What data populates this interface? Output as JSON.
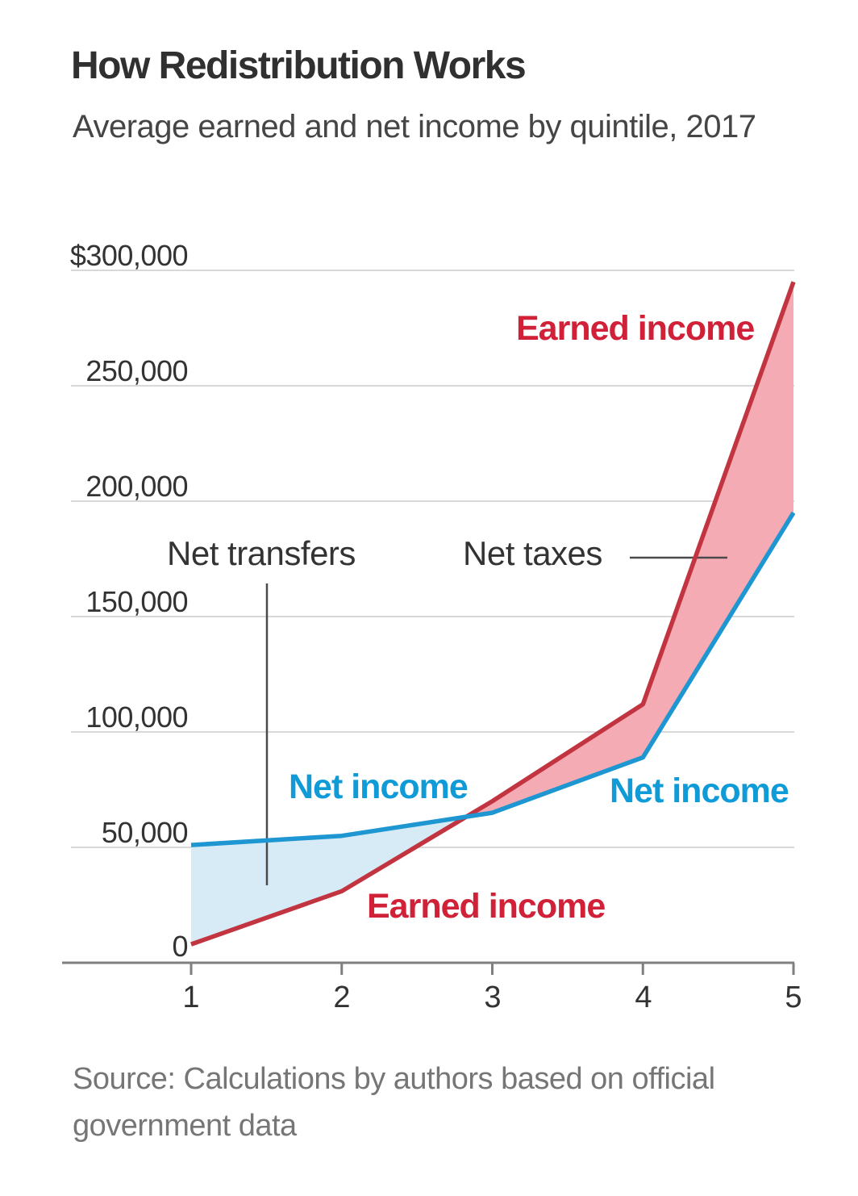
{
  "header": {
    "title": "How Redistribution Works",
    "subtitle": "Average earned and net income by quintile, 2017"
  },
  "source": "Source: Calculations by authors based on official government data",
  "colors": {
    "earned_line": "#c23440",
    "earned_label": "#d02139",
    "net_line": "#1e96d2",
    "net_label": "#0f9ad8",
    "net_taxes_fill": "#f4abb4",
    "net_transfers_fill": "#d7ebf6",
    "gridline": "#d8d8d8",
    "axis": "#7f7f7f",
    "callout_line": "#4a4a4a"
  },
  "chart_data": {
    "type": "area",
    "title": "How Redistribution Works",
    "subtitle": "Average earned and net income by quintile, 2017",
    "xlabel": "",
    "ylabel": "",
    "x": [
      1,
      2,
      3,
      4,
      5
    ],
    "x_tick_labels": [
      "1",
      "2",
      "3",
      "4",
      "5"
    ],
    "ylim": [
      0,
      300000
    ],
    "grid": "horizontal",
    "y_ticks": [
      {
        "label": "$300,000",
        "value": 300000
      },
      {
        "label": "250,000",
        "value": 250000
      },
      {
        "label": "200,000",
        "value": 200000
      },
      {
        "label": "150,000",
        "value": 150000
      },
      {
        "label": "100,000",
        "value": 100000
      },
      {
        "label": "50,000",
        "value": 50000
      },
      {
        "label": "0",
        "value": 0
      }
    ],
    "series": [
      {
        "name": "Earned income",
        "color": "#c23440",
        "values": [
          8000,
          31000,
          70000,
          112000,
          295000
        ]
      },
      {
        "name": "Net income",
        "color": "#1e96d2",
        "values": [
          51000,
          55000,
          65000,
          89000,
          195000
        ]
      }
    ],
    "shaded_regions": [
      {
        "name": "Net transfers",
        "between": "net income above earned income, quintiles 1 to ~2.8",
        "color": "#d7ebf6"
      },
      {
        "name": "Net taxes",
        "between": "earned income above net income, quintiles ~2.8 to 5",
        "color": "#f4abb4"
      }
    ],
    "annotations": {
      "earned_income_top": "Earned income",
      "earned_income_bottom": "Earned income",
      "net_income_left": "Net income",
      "net_income_right": "Net income",
      "net_transfers": "Net transfers",
      "net_taxes": "Net taxes"
    }
  }
}
